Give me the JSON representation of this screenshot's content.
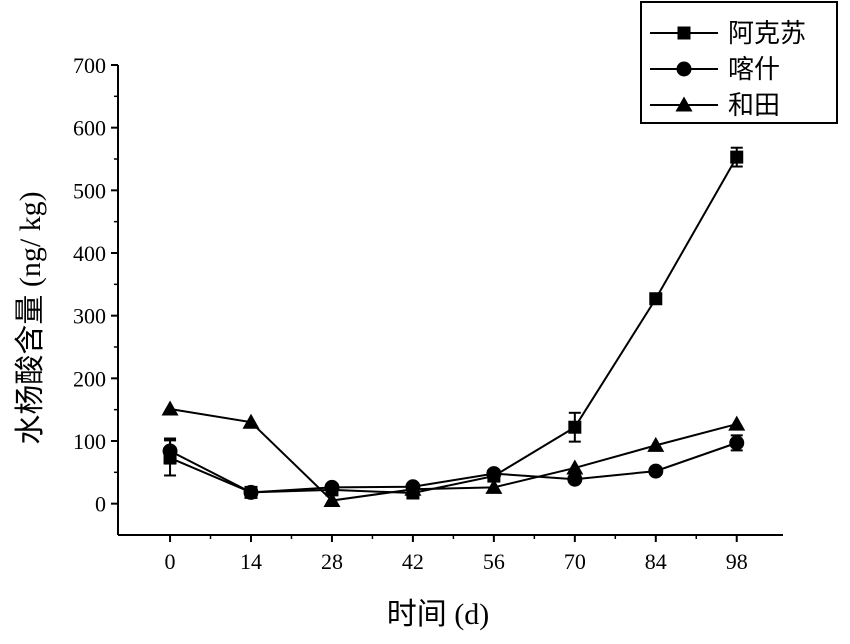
{
  "chart_data": {
    "type": "line",
    "xlabel": "时间 (d)",
    "ylabel": "水杨酸含量 (ng/ kg)",
    "x": [
      0,
      14,
      28,
      42,
      56,
      70,
      84,
      98
    ],
    "xlim": [
      -9,
      106
    ],
    "ylim": [
      -50,
      700
    ],
    "yticks": [
      0,
      100,
      200,
      300,
      400,
      500,
      600,
      700
    ],
    "grid": false,
    "legend_position": "top-right",
    "series": [
      {
        "name": "阿克苏",
        "marker": "square",
        "values": [
          73,
          18,
          22,
          17,
          44,
          122,
          327,
          553
        ],
        "errors": [
          28,
          5,
          5,
          5,
          8,
          23,
          5,
          15
        ]
      },
      {
        "name": "喀什",
        "marker": "circle",
        "values": [
          84,
          18,
          26,
          27,
          48,
          39,
          52,
          97
        ],
        "errors": [
          20,
          5,
          5,
          5,
          5,
          5,
          5,
          12
        ]
      },
      {
        "name": "和田",
        "marker": "triangle",
        "values": [
          151,
          130,
          5,
          23,
          26,
          57,
          93,
          127
        ],
        "errors": [
          0,
          0,
          0,
          0,
          0,
          0,
          0,
          0
        ]
      }
    ]
  }
}
